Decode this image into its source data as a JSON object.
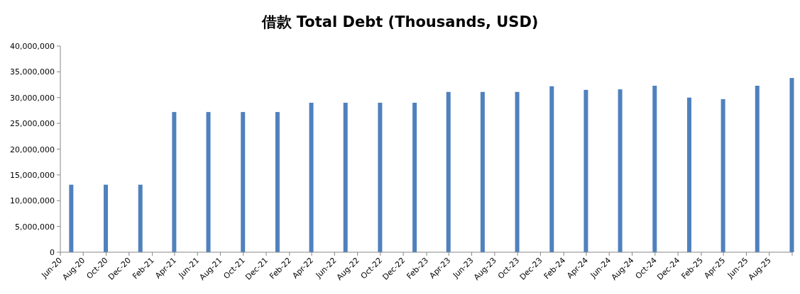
{
  "chart_data": {
    "type": "bar",
    "title": "借款 Total Debt (Thousands, USD)",
    "x": [
      "2020-06-30",
      "2020-09-30",
      "2020-12-31",
      "2021-03-31",
      "2021-06-30",
      "2021-09-30",
      "2021-12-31",
      "2022-03-31",
      "2022-06-30",
      "2022-09-30",
      "2022-12-31",
      "2023-03-31",
      "2023-06-30",
      "2023-09-30",
      "2023-12-31",
      "2024-03-31",
      "2024-06-30",
      "2024-09-30",
      "2024-12-31",
      "2025-03-31",
      "2025-06-30",
      "2025-09-30"
    ],
    "values": [
      13100000,
      13100000,
      13100000,
      27200000,
      27200000,
      27200000,
      27200000,
      29000000,
      29000000,
      29000000,
      29000000,
      31100000,
      31100000,
      31100000,
      32200000,
      31500000,
      31600000,
      32300000,
      30000000,
      29700000,
      32300000,
      33800000
    ],
    "color": "#4f81bd",
    "xlim": [
      "2020-06-01",
      "2025-10-01"
    ],
    "xticks": [
      {
        "value": "2020-06-01",
        "label": "Jun-20"
      },
      {
        "value": "2020-08-01",
        "label": "Aug-20"
      },
      {
        "value": "2020-10-01",
        "label": "Oct-20"
      },
      {
        "value": "2020-12-01",
        "label": "Dec-20"
      },
      {
        "value": "2021-02-01",
        "label": "Feb-21"
      },
      {
        "value": "2021-04-01",
        "label": "Apr-21"
      },
      {
        "value": "2021-06-01",
        "label": "Jun-21"
      },
      {
        "value": "2021-08-01",
        "label": "Aug-21"
      },
      {
        "value": "2021-10-01",
        "label": "Oct-21"
      },
      {
        "value": "2021-12-01",
        "label": "Dec-21"
      },
      {
        "value": "2022-02-01",
        "label": "Feb-22"
      },
      {
        "value": "2022-04-01",
        "label": "Apr-22"
      },
      {
        "value": "2022-06-01",
        "label": "Jun-22"
      },
      {
        "value": "2022-08-01",
        "label": "Aug-22"
      },
      {
        "value": "2022-10-01",
        "label": "Oct-22"
      },
      {
        "value": "2022-12-01",
        "label": "Dec-22"
      },
      {
        "value": "2023-02-01",
        "label": "Feb-23"
      },
      {
        "value": "2023-04-01",
        "label": "Apr-23"
      },
      {
        "value": "2023-06-01",
        "label": "Jun-23"
      },
      {
        "value": "2023-08-01",
        "label": "Aug-23"
      },
      {
        "value": "2023-10-01",
        "label": "Oct-23"
      },
      {
        "value": "2023-12-01",
        "label": "Dec-23"
      },
      {
        "value": "2024-02-01",
        "label": "Feb-24"
      },
      {
        "value": "2024-04-01",
        "label": "Apr-24"
      },
      {
        "value": "2024-06-01",
        "label": "Jun-24"
      },
      {
        "value": "2024-08-01",
        "label": "Aug-24"
      },
      {
        "value": "2024-10-01",
        "label": "Oct-24"
      },
      {
        "value": "2024-12-01",
        "label": "Dec-24"
      },
      {
        "value": "2025-02-01",
        "label": "Feb-25"
      },
      {
        "value": "2025-04-01",
        "label": "Apr-25"
      },
      {
        "value": "2025-06-01",
        "label": "Jun-25"
      },
      {
        "value": "2025-08-01",
        "label": "Aug-25"
      },
      {
        "value": "2025-10-01",
        "label": null
      }
    ],
    "ylim": [
      0,
      40000000
    ],
    "yticks": [
      {
        "value": 0,
        "label": "0"
      },
      {
        "value": 5000000,
        "label": "5,000,000"
      },
      {
        "value": 10000000,
        "label": "10,000,000"
      },
      {
        "value": 15000000,
        "label": "15,000,000"
      },
      {
        "value": 20000000,
        "label": "20,000,000"
      },
      {
        "value": 25000000,
        "label": "25,000,000"
      },
      {
        "value": 30000000,
        "label": "30,000,000"
      },
      {
        "value": 35000000,
        "label": "35,000,000"
      },
      {
        "value": 40000000,
        "label": "40,000,000"
      }
    ],
    "grid": false
  }
}
